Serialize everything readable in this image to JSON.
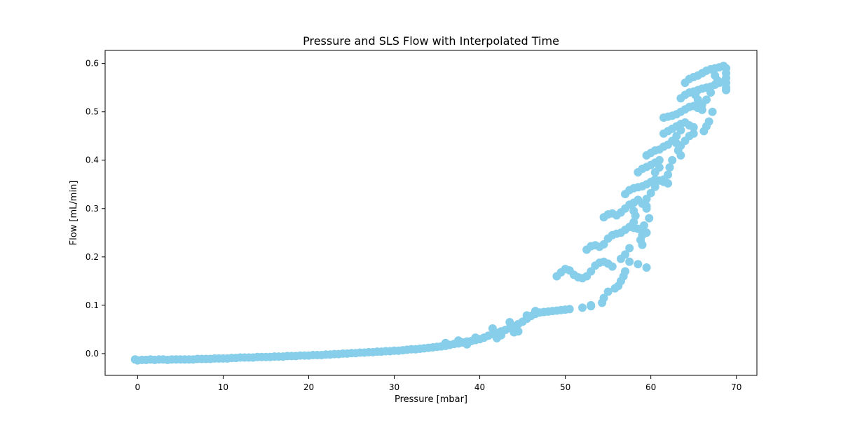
{
  "chart_data": {
    "type": "scatter",
    "title": "Pressure and SLS Flow with Interpolated Time",
    "xlabel": "Pressure [mbar]",
    "ylabel": "Flow [mL/min]",
    "xlim": [
      -3.8,
      72.4
    ],
    "ylim": [
      -0.045,
      0.627
    ],
    "xticks": [
      0,
      10,
      20,
      30,
      40,
      50,
      60,
      70
    ],
    "yticks": [
      0.0,
      0.1,
      0.2,
      0.3,
      0.4,
      0.5,
      0.6
    ],
    "ytick_labels": [
      "0.0",
      "0.1",
      "0.2",
      "0.3",
      "0.4",
      "0.5",
      "0.6"
    ],
    "grid": false,
    "legend": "none",
    "series": [
      {
        "color": "#87CEEB",
        "points": [
          [
            -0.3,
            -0.012
          ],
          [
            0.0,
            -0.014
          ],
          [
            0.5,
            -0.013
          ],
          [
            1.0,
            -0.013
          ],
          [
            1.5,
            -0.012
          ],
          [
            2.0,
            -0.013
          ],
          [
            2.5,
            -0.012
          ],
          [
            3.0,
            -0.012
          ],
          [
            3.5,
            -0.013
          ],
          [
            4.0,
            -0.012
          ],
          [
            4.5,
            -0.012
          ],
          [
            5.0,
            -0.012
          ],
          [
            5.5,
            -0.012
          ],
          [
            6.0,
            -0.012
          ],
          [
            6.5,
            -0.012
          ],
          [
            7.0,
            -0.011
          ],
          [
            7.5,
            -0.011
          ],
          [
            8.0,
            -0.011
          ],
          [
            8.5,
            -0.011
          ],
          [
            9.0,
            -0.01
          ],
          [
            9.5,
            -0.01
          ],
          [
            10.0,
            -0.01
          ],
          [
            10.5,
            -0.01
          ],
          [
            11.0,
            -0.009
          ],
          [
            11.5,
            -0.009
          ],
          [
            12.0,
            -0.008
          ],
          [
            12.5,
            -0.008
          ],
          [
            13.0,
            -0.008
          ],
          [
            13.5,
            -0.008
          ],
          [
            14.0,
            -0.007
          ],
          [
            14.5,
            -0.007
          ],
          [
            15.0,
            -0.007
          ],
          [
            15.5,
            -0.007
          ],
          [
            16.0,
            -0.006
          ],
          [
            16.5,
            -0.006
          ],
          [
            17.0,
            -0.006
          ],
          [
            17.5,
            -0.005
          ],
          [
            18.0,
            -0.005
          ],
          [
            18.5,
            -0.005
          ],
          [
            19.0,
            -0.004
          ],
          [
            19.5,
            -0.004
          ],
          [
            20.0,
            -0.004
          ],
          [
            20.5,
            -0.003
          ],
          [
            21.0,
            -0.003
          ],
          [
            21.5,
            -0.003
          ],
          [
            22.0,
            -0.002
          ],
          [
            22.5,
            -0.002
          ],
          [
            23.0,
            -0.001
          ],
          [
            23.5,
            -0.001
          ],
          [
            24.0,
            0.0
          ],
          [
            24.5,
            0.0
          ],
          [
            25.0,
            0.001
          ],
          [
            25.5,
            0.001
          ],
          [
            26.0,
            0.002
          ],
          [
            26.5,
            0.002
          ],
          [
            27.0,
            0.003
          ],
          [
            27.5,
            0.003
          ],
          [
            28.0,
            0.004
          ],
          [
            28.5,
            0.004
          ],
          [
            29.0,
            0.005
          ],
          [
            29.5,
            0.005
          ],
          [
            30.0,
            0.006
          ],
          [
            30.5,
            0.006
          ],
          [
            31.0,
            0.007
          ],
          [
            31.5,
            0.008
          ],
          [
            32.0,
            0.009
          ],
          [
            32.5,
            0.009
          ],
          [
            33.0,
            0.01
          ],
          [
            33.5,
            0.011
          ],
          [
            34.0,
            0.012
          ],
          [
            34.5,
            0.013
          ],
          [
            35.0,
            0.014
          ],
          [
            35.5,
            0.015
          ],
          [
            36.0,
            0.016
          ],
          [
            36.5,
            0.018
          ],
          [
            37.0,
            0.02
          ],
          [
            37.5,
            0.021
          ],
          [
            38.0,
            0.023
          ],
          [
            38.5,
            0.025
          ],
          [
            39.0,
            0.026
          ],
          [
            39.5,
            0.028
          ],
          [
            40.0,
            0.03
          ],
          [
            40.5,
            0.033
          ],
          [
            41.0,
            0.037
          ],
          [
            41.5,
            0.04
          ],
          [
            42.0,
            0.043
          ],
          [
            42.5,
            0.046
          ],
          [
            43.0,
            0.049
          ],
          [
            43.5,
            0.053
          ],
          [
            44.0,
            0.057
          ],
          [
            44.5,
            0.061
          ],
          [
            45.0,
            0.066
          ],
          [
            45.5,
            0.072
          ],
          [
            46.0,
            0.078
          ],
          [
            46.5,
            0.082
          ],
          [
            47.0,
            0.085
          ],
          [
            47.5,
            0.086
          ],
          [
            48.0,
            0.087
          ],
          [
            48.5,
            0.088
          ],
          [
            49.0,
            0.089
          ],
          [
            49.5,
            0.09
          ],
          [
            50.0,
            0.091
          ],
          [
            50.5,
            0.092
          ],
          [
            36.0,
            0.022
          ],
          [
            37.5,
            0.027
          ],
          [
            38.5,
            0.019
          ],
          [
            39.5,
            0.033
          ],
          [
            41.5,
            0.052
          ],
          [
            42.5,
            0.038
          ],
          [
            43.5,
            0.065
          ],
          [
            44.5,
            0.046
          ],
          [
            45.5,
            0.079
          ],
          [
            46.5,
            0.088
          ],
          [
            44.0,
            0.044
          ],
          [
            42.0,
            0.032
          ],
          [
            52.0,
            0.095
          ],
          [
            53.0,
            0.098
          ],
          [
            49.0,
            0.16
          ],
          [
            49.5,
            0.168
          ],
          [
            50.0,
            0.175
          ],
          [
            50.5,
            0.172
          ],
          [
            51.0,
            0.163
          ],
          [
            51.5,
            0.158
          ],
          [
            52.0,
            0.156
          ],
          [
            52.5,
            0.16
          ],
          [
            53.0,
            0.17
          ],
          [
            53.5,
            0.182
          ],
          [
            54.0,
            0.188
          ],
          [
            54.5,
            0.19
          ],
          [
            55.0,
            0.186
          ],
          [
            55.5,
            0.18
          ],
          [
            52.5,
            0.215
          ],
          [
            53.0,
            0.222
          ],
          [
            53.5,
            0.224
          ],
          [
            54.0,
            0.221
          ],
          [
            54.5,
            0.226
          ],
          [
            55.0,
            0.238
          ],
          [
            55.5,
            0.245
          ],
          [
            56.0,
            0.248
          ],
          [
            56.5,
            0.25
          ],
          [
            57.0,
            0.256
          ],
          [
            57.5,
            0.262
          ],
          [
            58.0,
            0.26
          ],
          [
            58.5,
            0.258
          ],
          [
            59.0,
            0.256
          ],
          [
            59.5,
            0.25
          ],
          [
            54.5,
            0.282
          ],
          [
            55.0,
            0.288
          ],
          [
            55.5,
            0.29
          ],
          [
            56.0,
            0.286
          ],
          [
            56.5,
            0.292
          ],
          [
            57.0,
            0.3
          ],
          [
            57.5,
            0.308
          ],
          [
            58.0,
            0.312
          ],
          [
            58.5,
            0.318
          ],
          [
            59.0,
            0.31
          ],
          [
            59.5,
            0.305
          ],
          [
            57.0,
            0.33
          ],
          [
            57.5,
            0.338
          ],
          [
            58.0,
            0.342
          ],
          [
            58.5,
            0.344
          ],
          [
            59.0,
            0.346
          ],
          [
            59.5,
            0.35
          ],
          [
            60.0,
            0.355
          ],
          [
            60.5,
            0.36
          ],
          [
            61.0,
            0.358
          ],
          [
            61.5,
            0.355
          ],
          [
            62.0,
            0.352
          ],
          [
            58.5,
            0.375
          ],
          [
            59.0,
            0.382
          ],
          [
            59.5,
            0.386
          ],
          [
            60.0,
            0.39
          ],
          [
            60.5,
            0.395
          ],
          [
            61.0,
            0.4
          ],
          [
            59.5,
            0.41
          ],
          [
            60.0,
            0.415
          ],
          [
            60.5,
            0.42
          ],
          [
            61.0,
            0.422
          ],
          [
            61.5,
            0.428
          ],
          [
            62.0,
            0.432
          ],
          [
            62.5,
            0.44
          ],
          [
            63.0,
            0.435
          ],
          [
            61.5,
            0.455
          ],
          [
            62.0,
            0.46
          ],
          [
            62.5,
            0.465
          ],
          [
            63.0,
            0.47
          ],
          [
            63.5,
            0.475
          ],
          [
            64.0,
            0.478
          ],
          [
            64.5,
            0.472
          ],
          [
            65.0,
            0.468
          ],
          [
            61.5,
            0.488
          ],
          [
            62.0,
            0.49
          ],
          [
            62.5,
            0.492
          ],
          [
            63.0,
            0.495
          ],
          [
            63.5,
            0.5
          ],
          [
            64.0,
            0.505
          ],
          [
            64.5,
            0.51
          ],
          [
            65.0,
            0.512
          ],
          [
            65.5,
            0.508
          ],
          [
            66.0,
            0.504
          ],
          [
            63.5,
            0.528
          ],
          [
            64.0,
            0.535
          ],
          [
            64.5,
            0.54
          ],
          [
            65.0,
            0.542
          ],
          [
            65.5,
            0.545
          ],
          [
            66.0,
            0.548
          ],
          [
            66.5,
            0.55
          ],
          [
            67.0,
            0.552
          ],
          [
            67.5,
            0.556
          ],
          [
            68.0,
            0.56
          ],
          [
            68.5,
            0.562
          ],
          [
            64.0,
            0.56
          ],
          [
            64.5,
            0.568
          ],
          [
            65.0,
            0.572
          ],
          [
            65.5,
            0.575
          ],
          [
            66.0,
            0.58
          ],
          [
            66.5,
            0.585
          ],
          [
            67.0,
            0.588
          ],
          [
            67.5,
            0.59
          ],
          [
            68.0,
            0.592
          ],
          [
            68.5,
            0.595
          ],
          [
            68.8,
            0.59
          ],
          [
            68.8,
            0.58
          ],
          [
            68.8,
            0.57
          ],
          [
            68.8,
            0.56
          ],
          [
            68.8,
            0.55
          ],
          [
            68.8,
            0.545
          ],
          [
            67.0,
            0.54
          ],
          [
            66.5,
            0.525
          ],
          [
            66.0,
            0.515
          ],
          [
            67.2,
            0.5
          ],
          [
            66.8,
            0.48
          ],
          [
            66.5,
            0.47
          ],
          [
            66.2,
            0.46
          ],
          [
            65.0,
            0.455
          ],
          [
            64.5,
            0.45
          ],
          [
            64.0,
            0.44
          ],
          [
            63.5,
            0.43
          ],
          [
            63.2,
            0.42
          ],
          [
            63.5,
            0.41
          ],
          [
            62.5,
            0.4
          ],
          [
            62.2,
            0.385
          ],
          [
            62.0,
            0.37
          ],
          [
            61.5,
            0.36
          ],
          [
            60.5,
            0.345
          ],
          [
            60.0,
            0.332
          ],
          [
            59.5,
            0.32
          ],
          [
            59.5,
            0.3
          ],
          [
            59.8,
            0.28
          ],
          [
            59.2,
            0.265
          ],
          [
            59.0,
            0.245
          ],
          [
            58.8,
            0.235
          ],
          [
            59.0,
            0.225
          ],
          [
            57.5,
            0.218
          ],
          [
            57.0,
            0.205
          ],
          [
            56.5,
            0.196
          ],
          [
            57.5,
            0.19
          ],
          [
            58.5,
            0.185
          ],
          [
            59.5,
            0.178
          ],
          [
            57.0,
            0.17
          ],
          [
            56.8,
            0.16
          ],
          [
            56.5,
            0.15
          ],
          [
            56.2,
            0.14
          ],
          [
            55.8,
            0.135
          ],
          [
            55.0,
            0.128
          ],
          [
            54.5,
            0.115
          ],
          [
            54.3,
            0.105
          ],
          [
            53.0,
            0.1
          ],
          [
            58.0,
            0.295
          ],
          [
            58.2,
            0.285
          ],
          [
            58.0,
            0.272
          ],
          [
            57.8,
            0.265
          ],
          [
            60.5,
            0.375
          ],
          [
            61.0,
            0.385
          ],
          [
            63.0,
            0.45
          ],
          [
            63.5,
            0.462
          ],
          [
            65.5,
            0.525
          ],
          [
            65.2,
            0.535
          ],
          [
            67.8,
            0.565
          ],
          [
            67.5,
            0.575
          ]
        ]
      }
    ]
  }
}
